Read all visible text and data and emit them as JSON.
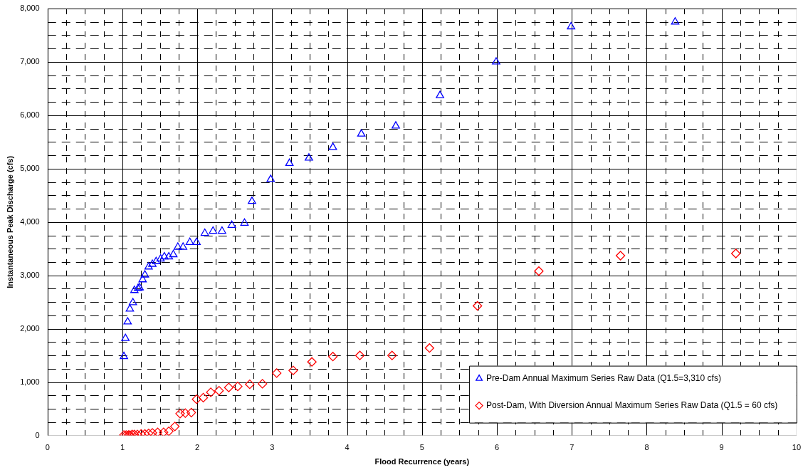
{
  "chart_data": {
    "type": "scatter",
    "xlabel": "Flood Recurrence (years)",
    "ylabel": "Instantaneous Peak Discharge (cfs)",
    "xlim": [
      0,
      10
    ],
    "ylim": [
      0,
      8000
    ],
    "xticks": [
      0,
      {
        "value": 0.25,
        "label": null
      },
      {
        "value": 0.5,
        "label": null
      },
      {
        "value": 0.75,
        "label": null
      },
      1,
      {
        "value": 1.25,
        "label": null
      },
      {
        "value": 1.5,
        "label": null
      },
      {
        "value": 1.75,
        "label": null
      },
      2,
      {
        "value": 2.25,
        "label": null
      },
      {
        "value": 2.5,
        "label": null
      },
      {
        "value": 2.75,
        "label": null
      },
      3,
      {
        "value": 3.25,
        "label": null
      },
      {
        "value": 3.5,
        "label": null
      },
      {
        "value": 3.75,
        "label": null
      },
      4,
      {
        "value": 4.25,
        "label": null
      },
      {
        "value": 4.5,
        "label": null
      },
      {
        "value": 4.75,
        "label": null
      },
      5,
      {
        "value": 5.25,
        "label": null
      },
      {
        "value": 5.5,
        "label": null
      },
      {
        "value": 5.75,
        "label": null
      },
      6,
      {
        "value": 6.25,
        "label": null
      },
      {
        "value": 6.5,
        "label": null
      },
      {
        "value": 6.75,
        "label": null
      },
      7,
      {
        "value": 7.25,
        "label": null
      },
      {
        "value": 7.5,
        "label": null
      },
      {
        "value": 7.75,
        "label": null
      },
      8,
      {
        "value": 8.25,
        "label": null
      },
      {
        "value": 8.5,
        "label": null
      },
      {
        "value": 8.75,
        "label": null
      },
      9,
      {
        "value": 9.25,
        "label": null
      },
      {
        "value": 9.5,
        "label": null
      },
      {
        "value": 9.75,
        "label": null
      },
      10
    ],
    "yticks": [
      0,
      {
        "value": 250,
        "label": null
      },
      {
        "value": 500,
        "label": null
      },
      {
        "value": 750,
        "label": null
      },
      {
        "value": 1000,
        "label": "1,000"
      },
      {
        "value": 1250,
        "label": null
      },
      {
        "value": 1500,
        "label": null
      },
      {
        "value": 1750,
        "label": null
      },
      {
        "value": 2000,
        "label": "2,000"
      },
      {
        "value": 2250,
        "label": null
      },
      {
        "value": 2500,
        "label": null
      },
      {
        "value": 2750,
        "label": null
      },
      {
        "value": 3000,
        "label": "3,000"
      },
      {
        "value": 3250,
        "label": null
      },
      {
        "value": 3500,
        "label": null
      },
      {
        "value": 3750,
        "label": null
      },
      {
        "value": 4000,
        "label": "4,000"
      },
      {
        "value": 4250,
        "label": null
      },
      {
        "value": 4500,
        "label": null
      },
      {
        "value": 4750,
        "label": null
      },
      {
        "value": 5000,
        "label": "5,000"
      },
      {
        "value": 5250,
        "label": null
      },
      {
        "value": 5500,
        "label": null
      },
      {
        "value": 5750,
        "label": null
      },
      {
        "value": 6000,
        "label": "6,000"
      },
      {
        "value": 6250,
        "label": null
      },
      {
        "value": 6500,
        "label": null
      },
      {
        "value": 6750,
        "label": null
      },
      {
        "value": 7000,
        "label": "7,000"
      },
      {
        "value": 7250,
        "label": null
      },
      {
        "value": 7500,
        "label": null
      },
      {
        "value": 7750,
        "label": null
      },
      {
        "value": 8000,
        "label": "8,000"
      }
    ],
    "grid": true,
    "legend": "bottom right",
    "series": [
      {
        "name": "Pre-Dam Annual Maximum Series Raw Data (Q1.5=3,310 cfs)",
        "color": "#0000ff",
        "marker": "triangle",
        "x": [
          1.02,
          1.04,
          1.07,
          1.1,
          1.14,
          1.16,
          1.21,
          1.23,
          1.27,
          1.3,
          1.35,
          1.4,
          1.45,
          1.51,
          1.56,
          1.62,
          1.68,
          1.74,
          1.81,
          1.9,
          1.99,
          2.1,
          2.21,
          2.33,
          2.46,
          2.63,
          2.73,
          2.98,
          3.23,
          3.49,
          3.81,
          4.19,
          4.65,
          5.24,
          5.99,
          6.99,
          8.38
        ],
        "values": [
          1480,
          1820,
          2130,
          2370,
          2490,
          2720,
          2760,
          2770,
          2920,
          3010,
          3160,
          3210,
          3260,
          3310,
          3350,
          3350,
          3390,
          3530,
          3530,
          3620,
          3620,
          3790,
          3830,
          3830,
          3940,
          3980,
          4390,
          4800,
          5100,
          5200,
          5400,
          5650,
          5800,
          6370,
          7000,
          7660,
          7750
        ]
      },
      {
        "name": "Post-Dam, With Diversion Annual Maximum Series Raw Data (Q1.5 = 60 cfs)",
        "color": "#ff0000",
        "marker": "diamond",
        "x": [
          1.02,
          1.05,
          1.08,
          1.1,
          1.13,
          1.16,
          1.2,
          1.25,
          1.3,
          1.35,
          1.4,
          1.47,
          1.55,
          1.62,
          1.7,
          1.77,
          1.84,
          1.92,
          1.99,
          2.08,
          2.18,
          2.29,
          2.42,
          2.54,
          2.7,
          2.87,
          3.06,
          3.28,
          3.53,
          3.81,
          4.17,
          4.6,
          5.1,
          5.74,
          6.56,
          7.65,
          9.19
        ],
        "values": [
          10,
          10,
          10,
          10,
          20,
          20,
          20,
          30,
          30,
          40,
          50,
          60,
          60,
          80,
          170,
          410,
          420,
          430,
          680,
          710,
          810,
          840,
          900,
          920,
          960,
          970,
          1170,
          1220,
          1380,
          1480,
          1500,
          1500,
          1640,
          2430,
          3080,
          3370,
          3410
        ]
      }
    ]
  }
}
